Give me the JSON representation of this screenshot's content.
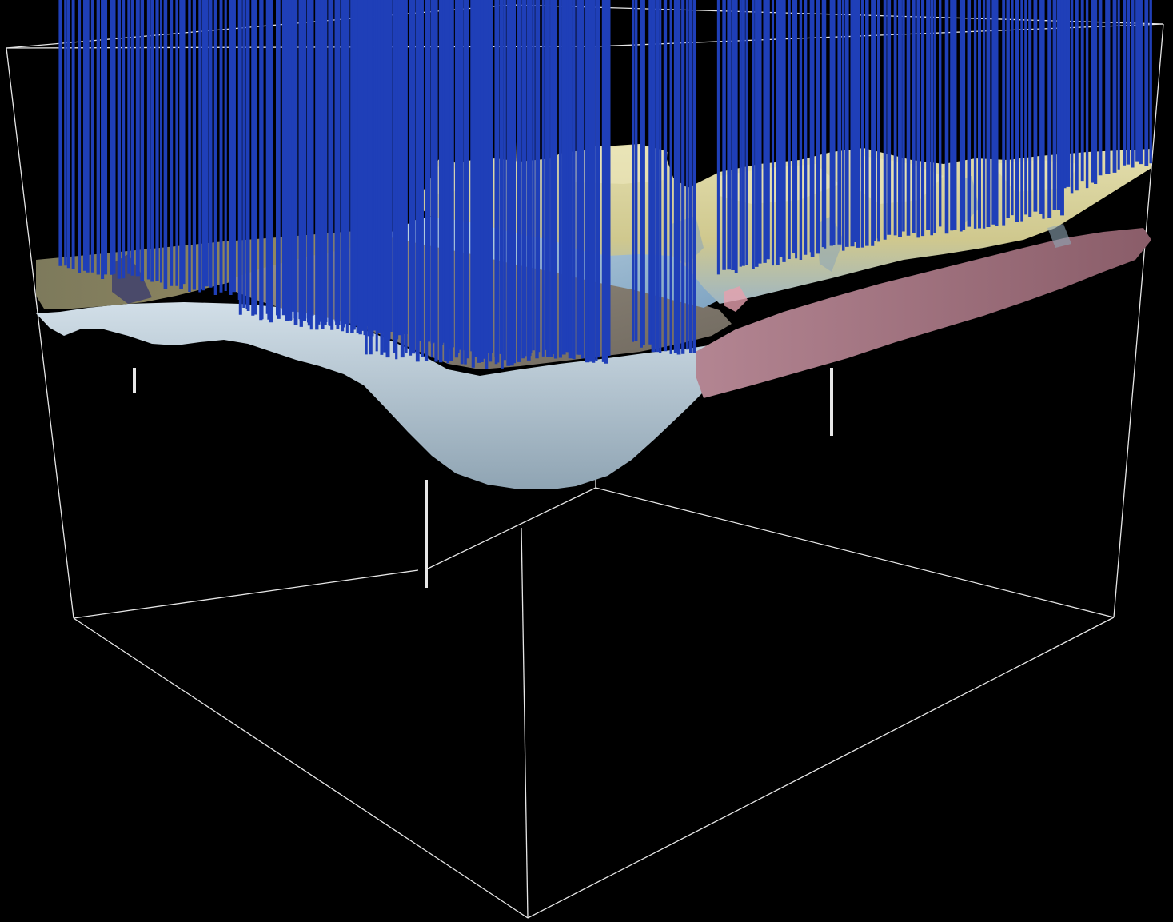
{
  "scene": {
    "background_color": "#000000",
    "bounding_box_color": "#e6e6e6",
    "layers": [
      {
        "id": "terrain-high",
        "color": "#d8d29a",
        "shading_color": "#a9a36a"
      },
      {
        "id": "terrain-blue",
        "color": "#a8c8dc"
      },
      {
        "id": "terrain-grey",
        "color": "#8a8377"
      },
      {
        "id": "terrain-olive",
        "color": "#8f8560"
      },
      {
        "id": "base-surface-light",
        "color": "#c4d3dd"
      },
      {
        "id": "base-surface-pink",
        "color": "#9a6a76"
      }
    ],
    "borehole_colors": {
      "upper": "#1f3fb8",
      "lower": "#e01818",
      "intervals": [
        "#2fc7c7",
        "#32b84a",
        "#e8e02a",
        "#f08a18"
      ],
      "deep": "#e8e8e8"
    }
  }
}
